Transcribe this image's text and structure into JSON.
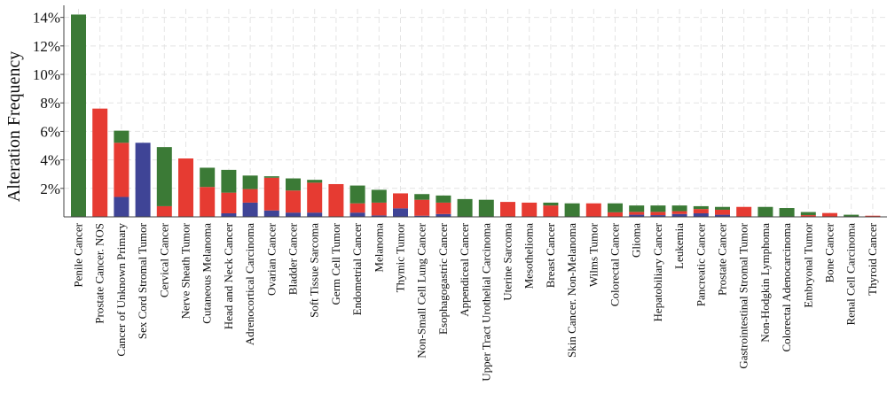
{
  "chart_data": {
    "type": "bar",
    "stacked": true,
    "title": "",
    "xlabel": "",
    "ylabel": "Alteration Frequency",
    "ylim": [
      0,
      14.6
    ],
    "yticks": [
      "2%",
      "4%",
      "6%",
      "8%",
      "10%",
      "12%",
      "14%"
    ],
    "ytick_values": [
      2,
      4,
      6,
      8,
      10,
      12,
      14
    ],
    "grid": true,
    "legend": "none",
    "colors": {
      "blue": "#3f4496",
      "red": "#e63b32",
      "green": "#3b7a36"
    },
    "categories": [
      "Penile Cancer",
      "Prostate Cancer. NOS",
      "Cancer of Unknown Primary",
      "Sex Cord Stromal Tumor",
      "Cervical Cancer",
      "Nerve Sheath Tumor",
      "Cutaneous Melanoma",
      "Head and Neck Cancer",
      "Adrenocortical Carcinoma",
      "Ovarian Cancer",
      "Bladder Cancer",
      "Soft Tissue Sarcoma",
      "Germ Cell Tumor",
      "Endometrial Cancer",
      "Melanoma",
      "Thymic Tumor",
      "Non-Small Cell Lung Cancer",
      "Esophagogastric Cancer",
      "Appendiceal Cancer",
      "Upper Tract Urothelial Carcinoma",
      "Uterine Sarcoma",
      "Mesothelioma",
      "Breast Cancer",
      "Skin Cancer. Non-Melanoma",
      "Wilms Tumor",
      "Colorectal Cancer",
      "Glioma",
      "Hepatobiliary Cancer",
      "Leukemia",
      "Pancreatic Cancer",
      "Prostate Cancer",
      "Gastrointestinal Stromal Tumor",
      "Non-Hodgkin Lymphoma",
      "Colorectal Adenocarcinoma",
      "Embryonal Tumor",
      "Bone Cancer",
      "Renal Cell Carcinoma",
      "Thyroid Cancer"
    ],
    "series": [
      {
        "color": "blue",
        "values": [
          0,
          0,
          1.4,
          5.2,
          0,
          0,
          0,
          0.25,
          1.0,
          0.45,
          0.3,
          0.3,
          0,
          0.3,
          0.1,
          0.6,
          0.08,
          0.2,
          0,
          0,
          0,
          0,
          0,
          0,
          0,
          0,
          0.15,
          0.12,
          0.2,
          0.25,
          0.15,
          0,
          0,
          0,
          0,
          0,
          0,
          0
        ]
      },
      {
        "color": "red",
        "values": [
          0,
          7.6,
          3.8,
          0,
          0.75,
          4.1,
          2.1,
          1.45,
          0.95,
          2.3,
          1.55,
          2.1,
          2.3,
          0.65,
          0.9,
          1.05,
          1.12,
          0.8,
          0,
          0,
          1.05,
          1.0,
          0.8,
          0,
          0.95,
          0.32,
          0.2,
          0.23,
          0.2,
          0.3,
          0.35,
          0.7,
          0,
          0,
          0.12,
          0.27,
          0.03,
          0.08
        ]
      },
      {
        "color": "green",
        "values": [
          14.2,
          0,
          0.85,
          0,
          4.15,
          0,
          1.35,
          1.6,
          0.95,
          0.1,
          0.85,
          0.2,
          0,
          1.25,
          0.9,
          0,
          0.4,
          0.5,
          1.25,
          1.2,
          0,
          0,
          0.2,
          0.95,
          0,
          0.63,
          0.45,
          0.45,
          0.4,
          0.2,
          0.2,
          0,
          0.7,
          0.62,
          0.22,
          0,
          0.12,
          0
        ]
      }
    ]
  }
}
